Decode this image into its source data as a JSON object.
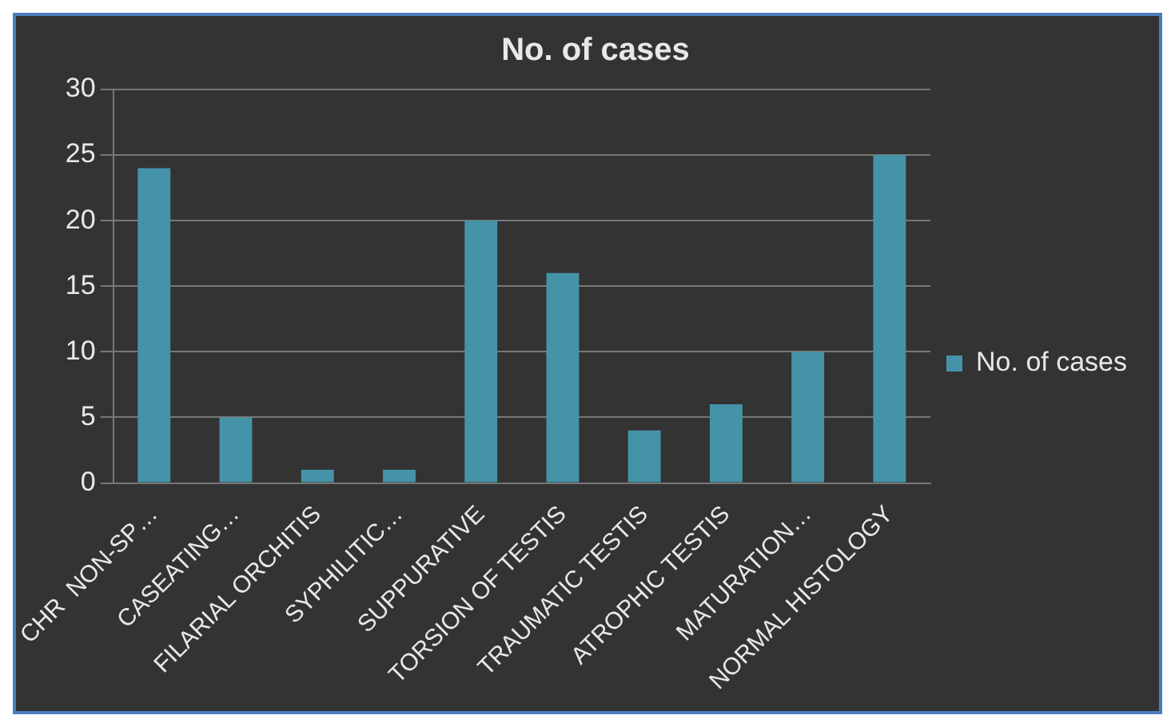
{
  "chart_data": {
    "type": "bar",
    "title": "No. of cases",
    "categories": [
      "CHR  NON-SP…",
      "CASEATING…",
      "FILARIAL ORCHITIS",
      "SYPHILITIC…",
      "SUPPURATIVE",
      "TORSION OF TESTIS",
      "TRAUMATIC TESTIS",
      "ATROPHIC TESTIS",
      "MATURATION…",
      "NORMAL HISTOLOGY"
    ],
    "series": [
      {
        "name": "No. of cases",
        "color": "#4593a8",
        "values": [
          24,
          5,
          1,
          1,
          20,
          16,
          4,
          6,
          10,
          25
        ]
      }
    ],
    "ylim": [
      0,
      30
    ],
    "yticks": [
      0,
      5,
      10,
      15,
      20,
      25,
      30
    ],
    "grid": "y",
    "legend": "right"
  }
}
